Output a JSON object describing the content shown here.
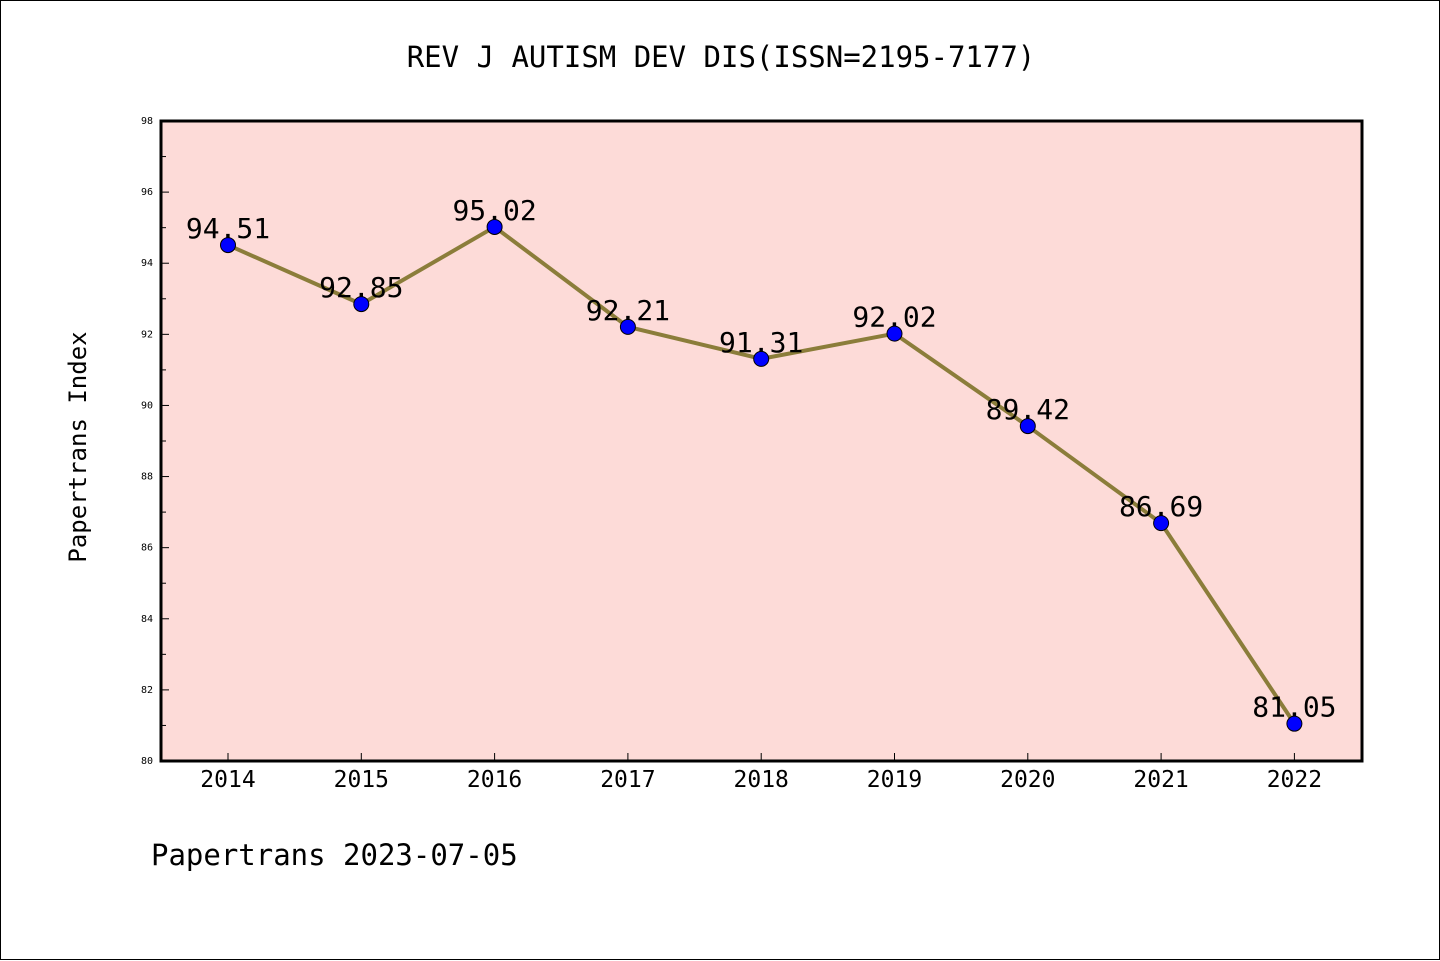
{
  "chart_data": {
    "type": "line",
    "title": "REV J AUTISM DEV DIS(ISSN=2195-7177)",
    "xlabel": "",
    "ylabel": "Papertrans Index",
    "categories": [
      "2014",
      "2015",
      "2016",
      "2017",
      "2018",
      "2019",
      "2020",
      "2021",
      "2022"
    ],
    "values": [
      94.51,
      92.85,
      95.02,
      92.21,
      91.31,
      92.02,
      89.42,
      86.69,
      81.05
    ],
    "data_labels": [
      "94.51",
      "92.85",
      "95.02",
      "92.21",
      "91.31",
      "92.02",
      "89.42",
      "86.69",
      "81.05"
    ],
    "ylim": [
      80,
      98
    ],
    "yticks": [
      "80",
      "82",
      "84",
      "86",
      "88",
      "90",
      "92",
      "94",
      "96",
      "98"
    ],
    "grid": false,
    "legend": "none",
    "footer": "Papertrans 2023-07-05",
    "colors": {
      "plot_background": "#fddbd8",
      "line": "#8b7d3a",
      "marker": "#0000ff",
      "axis": "#000000"
    }
  }
}
